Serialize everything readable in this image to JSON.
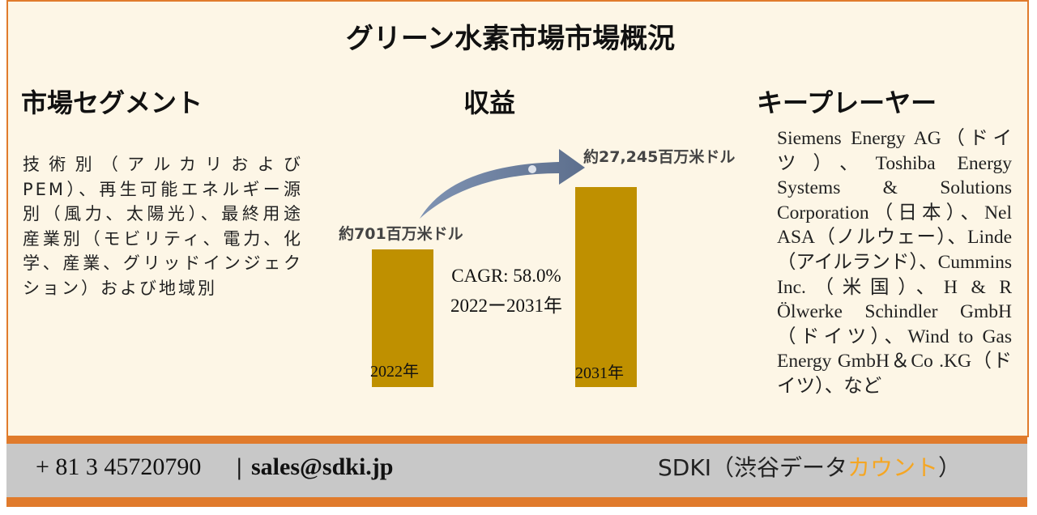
{
  "title": "グリーン水素市場市場概況",
  "segment": {
    "heading": "市場セグメント",
    "text": "技術別（アルカリおよびPEM）、再生可能エネルギー源別（風力、太陽光）、最終用途産業別（モビリティ、電力、化学、産業、グリッドインジェクション）および地域別"
  },
  "revenue": {
    "heading": "収益",
    "start_amount": "約701百万米ドル",
    "end_amount": "約27,245百万米ドル",
    "cagr": "CAGR: 58.0%",
    "period": "2022ー2031年",
    "start_year": "2022年",
    "end_year": "2031年"
  },
  "players": {
    "heading": "キープレーヤー",
    "text": "Siemens Energy AG（ドイツ）、Toshiba Energy Systems & Solutions Corporation（日本）、Nel ASA（ノルウェー）、Linde（アイルランド）、Cummins Inc.（米国）、H & R Ölwerke Schindler GmbH（ドイツ）、Wind to Gas Energy GmbH＆Co .KG（ドイツ）、など"
  },
  "footer": {
    "phone": "+ 81 3 45720790",
    "separator": "|",
    "email": "sales@sdki.jp",
    "company": "SDKI（渋谷データ",
    "company_highlight": "カウント",
    "company_end": "）"
  }
}
